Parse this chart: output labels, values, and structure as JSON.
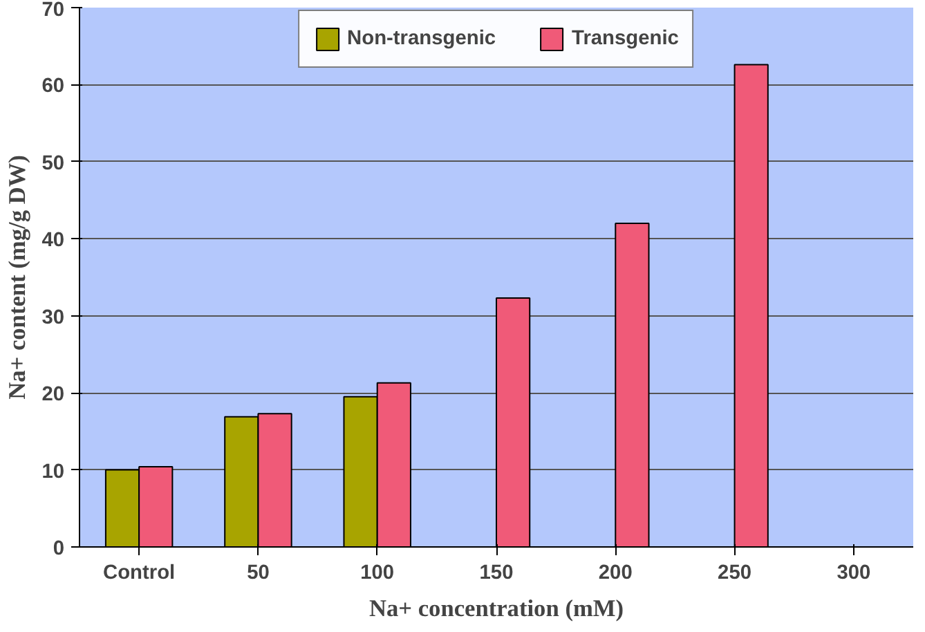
{
  "chart_data": {
    "type": "bar",
    "xlabel": "Na+ concentration (mM)",
    "ylabel": "Na+ content (mg/g DW)",
    "categories": [
      "Control",
      "50",
      "100",
      "150",
      "200",
      "250",
      "300"
    ],
    "series": [
      {
        "name": "Non-transgenic",
        "color": "#a8a400",
        "values": [
          10,
          16.9,
          19.5,
          null,
          null,
          null,
          null
        ]
      },
      {
        "name": "Transgenic",
        "color": "#f05a78",
        "values": [
          10.4,
          17.3,
          21.3,
          32.3,
          42,
          62.6,
          null
        ]
      }
    ],
    "ylim": [
      0,
      70
    ],
    "yticks": [
      0,
      10,
      20,
      30,
      40,
      50,
      60,
      70
    ],
    "grid": "y",
    "legend": "top"
  }
}
